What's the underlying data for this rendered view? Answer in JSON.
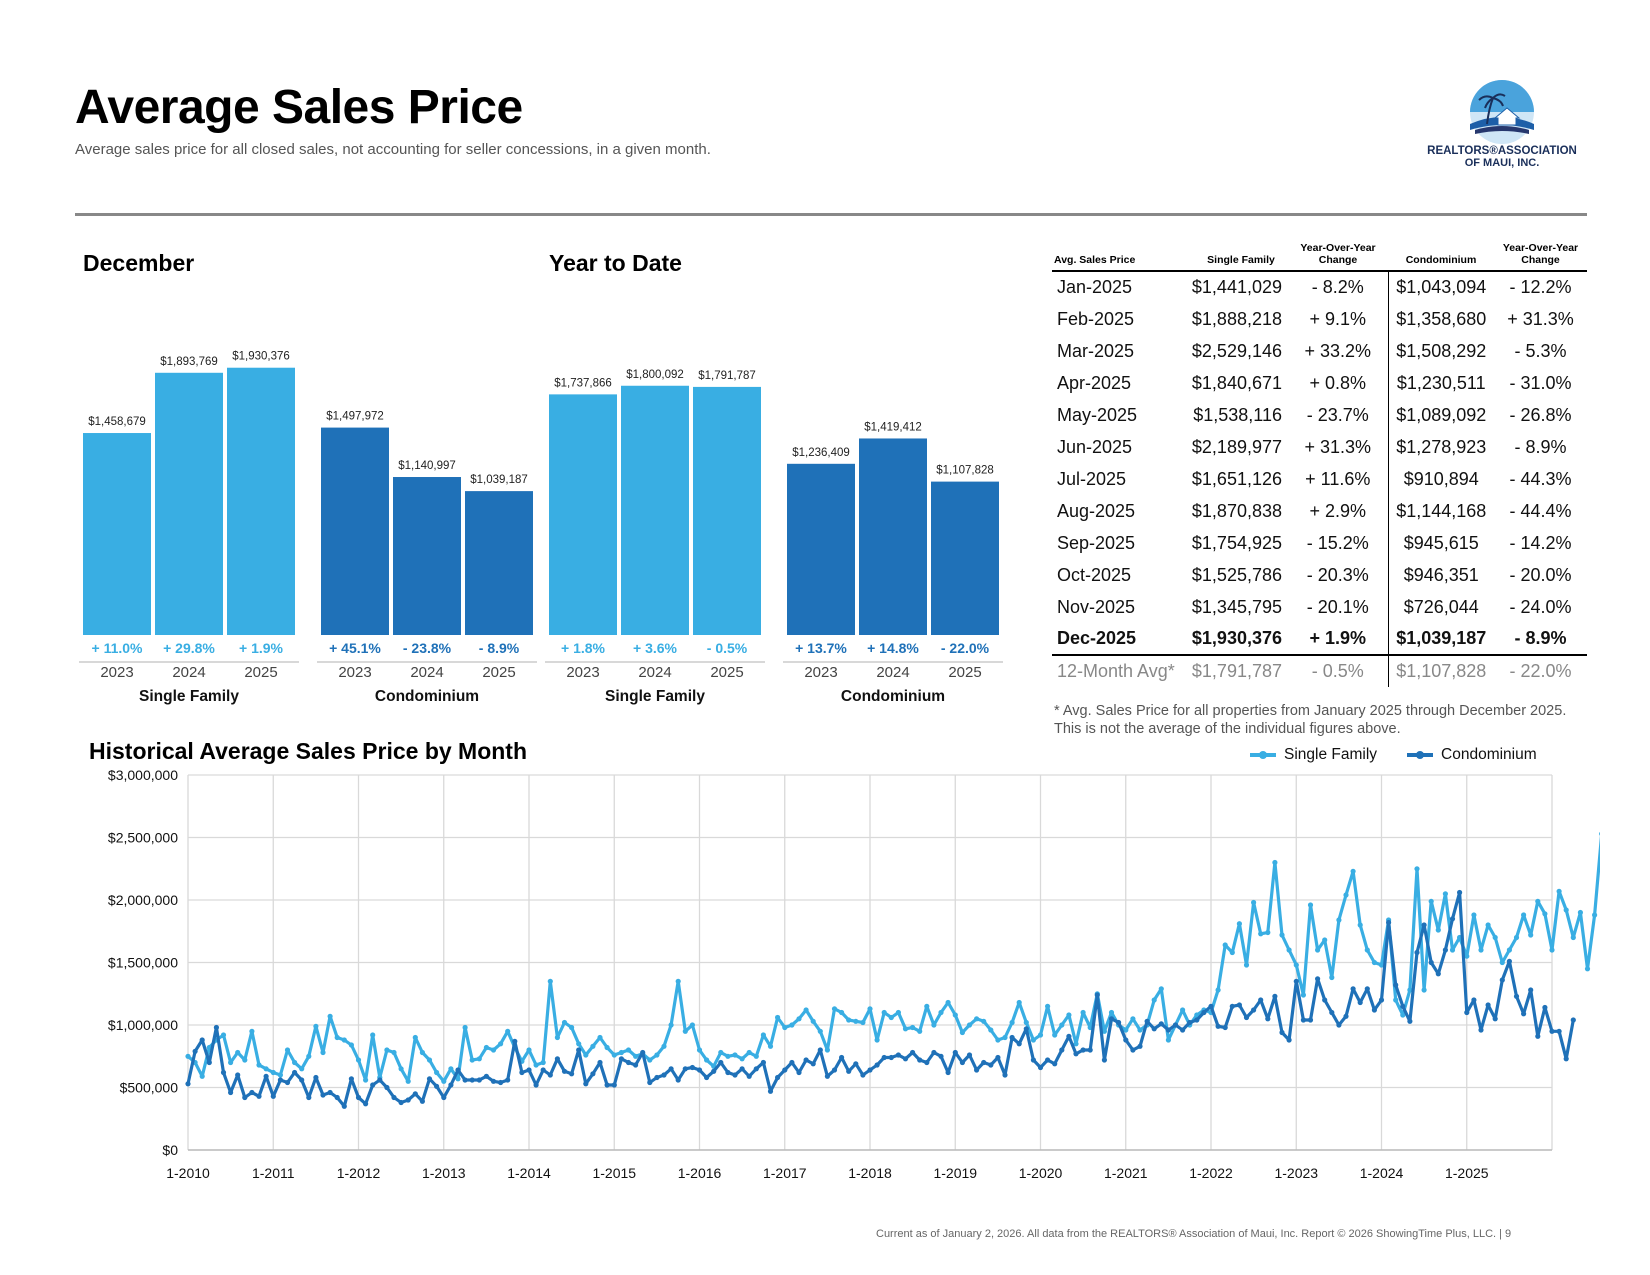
{
  "header": {
    "title": "Average Sales Price",
    "subtitle": "Average sales price for all closed sales, not accounting for seller concessions, in a given month.",
    "logo_text_1": "REALTORS®ASSOCIATION",
    "logo_text_2": "OF MAUI, INC."
  },
  "colors": {
    "single_family": "#39aee3",
    "condominium": "#1f71b8",
    "grid": "#d9d9d9"
  },
  "table": {
    "headers": [
      "Avg. Sales Price",
      "Single Family",
      "Year-Over-Year Change",
      "Condominium",
      "Year-Over-Year Change"
    ],
    "rows": [
      [
        "Jan-2025",
        "$1,441,029",
        "- 8.2%",
        "$1,043,094",
        "- 12.2%"
      ],
      [
        "Feb-2025",
        "$1,888,218",
        "+ 9.1%",
        "$1,358,680",
        "+ 31.3%"
      ],
      [
        "Mar-2025",
        "$2,529,146",
        "+ 33.2%",
        "$1,508,292",
        "- 5.3%"
      ],
      [
        "Apr-2025",
        "$1,840,671",
        "+ 0.8%",
        "$1,230,511",
        "- 31.0%"
      ],
      [
        "May-2025",
        "$1,538,116",
        "- 23.7%",
        "$1,089,092",
        "- 26.8%"
      ],
      [
        "Jun-2025",
        "$2,189,977",
        "+ 31.3%",
        "$1,278,923",
        "- 8.9%"
      ],
      [
        "Jul-2025",
        "$1,651,126",
        "+ 11.6%",
        "$910,894",
        "- 44.3%"
      ],
      [
        "Aug-2025",
        "$1,870,838",
        "+ 2.9%",
        "$1,144,168",
        "- 44.4%"
      ],
      [
        "Sep-2025",
        "$1,754,925",
        "- 15.2%",
        "$945,615",
        "- 14.2%"
      ],
      [
        "Oct-2025",
        "$1,525,786",
        "- 20.3%",
        "$946,351",
        "- 20.0%"
      ],
      [
        "Nov-2025",
        "$1,345,795",
        "- 20.1%",
        "$726,044",
        "- 24.0%"
      ],
      [
        "Dec-2025",
        "$1,930,376",
        "+ 1.9%",
        "$1,039,187",
        "- 8.9%"
      ]
    ],
    "avg_row": [
      "12-Month Avg*",
      "$1,791,787",
      "- 0.5%",
      "$1,107,828",
      "- 22.0%"
    ],
    "footnote": "* Avg. Sales Price for all properties from January 2025 through December 2025. This is not the average of the individual figures above."
  },
  "legend": {
    "single_family": "Single Family",
    "condominium": "Condominium"
  },
  "footer": "Current as of January 2, 2026. All data from the REALTORS® Association of Maui, Inc. Report © 2026 ShowingTime Plus, LLC.  |  9",
  "chart_data": [
    {
      "type": "bar",
      "title": "December",
      "groups": [
        {
          "name": "Single Family",
          "categories": [
            "2023",
            "2024",
            "2025"
          ],
          "values": [
            1458679,
            1893769,
            1930376
          ],
          "labels": [
            "$1,458,679",
            "$1,893,769",
            "$1,930,376"
          ],
          "changes": [
            "+ 11.0%",
            "+ 29.8%",
            "+ 1.9%"
          ]
        },
        {
          "name": "Condominium",
          "categories": [
            "2023",
            "2024",
            "2025"
          ],
          "values": [
            1497972,
            1140997,
            1039187
          ],
          "labels": [
            "$1,497,972",
            "$1,140,997",
            "$1,039,187"
          ],
          "changes": [
            "+ 45.1%",
            "- 23.8%",
            "- 8.9%"
          ]
        }
      ]
    },
    {
      "type": "bar",
      "title": "Year to Date",
      "groups": [
        {
          "name": "Single Family",
          "categories": [
            "2023",
            "2024",
            "2025"
          ],
          "values": [
            1737866,
            1800092,
            1791787
          ],
          "labels": [
            "$1,737,866",
            "$1,800,092",
            "$1,791,787"
          ],
          "changes": [
            "+ 1.8%",
            "+ 3.6%",
            "- 0.5%"
          ]
        },
        {
          "name": "Condominium",
          "categories": [
            "2023",
            "2024",
            "2025"
          ],
          "values": [
            1236409,
            1419412,
            1107828
          ],
          "labels": [
            "$1,236,409",
            "$1,419,412",
            "$1,107,828"
          ],
          "changes": [
            "+ 13.7%",
            "+ 14.8%",
            "- 22.0%"
          ]
        }
      ]
    },
    {
      "type": "line",
      "title": "Historical Average Sales Price by Month",
      "x_start": "1-2010",
      "x_tick_labels": [
        "1-2010",
        "1-2011",
        "1-2012",
        "1-2013",
        "1-2014",
        "1-2015",
        "1-2016",
        "1-2017",
        "1-2018",
        "1-2019",
        "1-2020",
        "1-2021",
        "1-2022",
        "1-2023",
        "1-2024",
        "1-2025"
      ],
      "y_tick_labels": [
        "$0",
        "$500,000",
        "$1,000,000",
        "$1,500,000",
        "$2,000,000",
        "$2,500,000",
        "$3,000,000"
      ],
      "ylim": [
        0,
        3000000
      ],
      "grid": true,
      "legend_position": "top-right",
      "series": [
        {
          "name": "Single Family",
          "values": [
            750000,
            700000,
            590000,
            820000,
            880000,
            920000,
            700000,
            780000,
            720000,
            950000,
            680000,
            650000,
            620000,
            600000,
            800000,
            700000,
            650000,
            750000,
            990000,
            780000,
            1070000,
            900000,
            880000,
            840000,
            720000,
            560000,
            920000,
            580000,
            800000,
            780000,
            650000,
            550000,
            900000,
            780000,
            720000,
            620000,
            550000,
            650000,
            570000,
            980000,
            720000,
            730000,
            820000,
            800000,
            850000,
            950000,
            820000,
            710000,
            800000,
            680000,
            700000,
            1350000,
            900000,
            1020000,
            980000,
            850000,
            760000,
            830000,
            900000,
            820000,
            760000,
            780000,
            800000,
            750000,
            770000,
            720000,
            760000,
            830000,
            1000000,
            1350000,
            950000,
            1000000,
            800000,
            720000,
            670000,
            780000,
            750000,
            760000,
            730000,
            780000,
            750000,
            920000,
            830000,
            1060000,
            980000,
            1000000,
            1050000,
            1120000,
            1030000,
            950000,
            800000,
            1130000,
            1100000,
            1040000,
            1030000,
            1020000,
            1130000,
            880000,
            1100000,
            1060000,
            1100000,
            970000,
            980000,
            950000,
            1150000,
            1000000,
            1100000,
            1180000,
            1080000,
            940000,
            1000000,
            1050000,
            1030000,
            960000,
            880000,
            900000,
            1020000,
            1180000,
            1020000,
            880000,
            920000,
            1150000,
            920000,
            1000000,
            1080000,
            850000,
            1100000,
            980000,
            1250000,
            950000,
            1100000,
            1000000,
            960000,
            1050000,
            960000,
            1000000,
            1200000,
            1290000,
            880000,
            1000000,
            1120000,
            1000000,
            1080000,
            1120000,
            1100000,
            1280000,
            1640000,
            1580000,
            1810000,
            1480000,
            1980000,
            1730000,
            1740000,
            2300000,
            1720000,
            1600000,
            1480000,
            1240000,
            1960000,
            1600000,
            1680000,
            1380000,
            1840000,
            2040000,
            2230000,
            1800000,
            1600000,
            1500000,
            1480000,
            1840000,
            1200000,
            1080000,
            1280000,
            2250000,
            1280000,
            1990000,
            1760000,
            2050000,
            1600000,
            1700000,
            1550000,
            1880000,
            1600000,
            1800000,
            1700000,
            1500000,
            1600000,
            1700000,
            1880000,
            1720000,
            1990000,
            1890000,
            1600000,
            2070000,
            1920000,
            1700000,
            1900000,
            1450000,
            1880000,
            2530000,
            1850000,
            1540000,
            2190000,
            1650000,
            1870000,
            1760000,
            1530000,
            1350000,
            1930000
          ]
        },
        {
          "name": "Condominium",
          "values": [
            530000,
            790000,
            880000,
            700000,
            980000,
            620000,
            460000,
            600000,
            420000,
            460000,
            430000,
            590000,
            430000,
            560000,
            540000,
            620000,
            560000,
            420000,
            580000,
            440000,
            460000,
            420000,
            350000,
            570000,
            420000,
            370000,
            520000,
            560000,
            500000,
            420000,
            380000,
            400000,
            450000,
            390000,
            570000,
            510000,
            420000,
            520000,
            640000,
            560000,
            560000,
            560000,
            590000,
            550000,
            540000,
            560000,
            870000,
            620000,
            640000,
            520000,
            640000,
            600000,
            730000,
            630000,
            610000,
            800000,
            530000,
            610000,
            700000,
            520000,
            520000,
            730000,
            700000,
            680000,
            780000,
            540000,
            580000,
            600000,
            650000,
            560000,
            650000,
            660000,
            640000,
            580000,
            630000,
            700000,
            620000,
            600000,
            650000,
            590000,
            650000,
            700000,
            470000,
            580000,
            640000,
            700000,
            620000,
            720000,
            690000,
            800000,
            590000,
            640000,
            740000,
            630000,
            690000,
            600000,
            640000,
            680000,
            740000,
            740000,
            760000,
            730000,
            780000,
            720000,
            700000,
            780000,
            750000,
            620000,
            780000,
            700000,
            760000,
            640000,
            700000,
            680000,
            740000,
            600000,
            900000,
            850000,
            970000,
            720000,
            660000,
            720000,
            690000,
            800000,
            910000,
            770000,
            800000,
            800000,
            1240000,
            720000,
            1050000,
            1020000,
            880000,
            800000,
            830000,
            1030000,
            970000,
            1010000,
            960000,
            1000000,
            960000,
            1020000,
            1040000,
            1100000,
            1150000,
            990000,
            980000,
            1150000,
            1160000,
            1060000,
            1120000,
            1200000,
            1050000,
            1230000,
            940000,
            880000,
            1350000,
            1040000,
            1040000,
            1370000,
            1200000,
            1100000,
            1000000,
            1070000,
            1290000,
            1180000,
            1290000,
            1120000,
            1200000,
            1820000,
            1320000,
            1150000,
            1030000,
            1580000,
            1800000,
            1500000,
            1410000,
            1600000,
            1850000,
            2060000,
            1100000,
            1200000,
            960000,
            1160000,
            1050000,
            1360000,
            1510000,
            1230000,
            1090000,
            1280000,
            910000,
            1140000,
            950000,
            950000,
            730000,
            1040000
          ]
        }
      ]
    }
  ]
}
